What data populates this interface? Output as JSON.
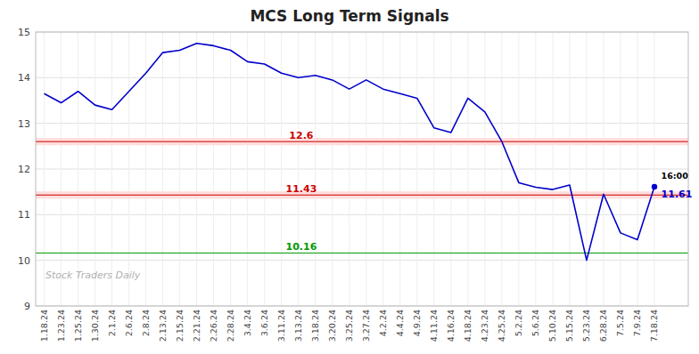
{
  "chart_data": {
    "type": "line",
    "title": "MCS Long Term Signals",
    "categories": [
      "1.18.24",
      "1.23.24",
      "1.25.24",
      "1.30.24",
      "2.1.24",
      "2.6.24",
      "2.8.24",
      "2.13.24",
      "2.15.24",
      "2.21.24",
      "2.26.24",
      "2.28.24",
      "3.4.24",
      "3.6.24",
      "3.11.24",
      "3.13.24",
      "3.18.24",
      "3.20.24",
      "3.25.24",
      "3.27.24",
      "4.2.24",
      "4.4.24",
      "4.9.24",
      "4.11.24",
      "4.16.24",
      "4.18.24",
      "4.23.24",
      "4.25.24",
      "5.2.24",
      "5.6.24",
      "5.10.24",
      "5.15.24",
      "5.23.24",
      "6.28.24",
      "7.5.24",
      "7.9.24",
      "7.18.24"
    ],
    "values": [
      13.65,
      13.45,
      13.7,
      13.4,
      13.3,
      13.7,
      14.1,
      14.55,
      14.6,
      14.75,
      14.7,
      14.6,
      14.35,
      14.3,
      14.1,
      14.0,
      14.05,
      13.95,
      13.75,
      13.95,
      13.75,
      13.65,
      13.55,
      12.9,
      12.8,
      13.55,
      13.25,
      12.6,
      11.7,
      11.6,
      11.55,
      11.65,
      10.0,
      11.45,
      10.6,
      10.45,
      11.61
    ],
    "color": "#0000cc",
    "hlines": [
      {
        "value": 12.6,
        "label": "12.6",
        "color": "#cc0000"
      },
      {
        "value": 11.43,
        "label": "11.43",
        "color": "#cc0000"
      },
      {
        "value": 10.16,
        "label": "10.16",
        "color": "#009900"
      }
    ],
    "bands": [
      {
        "y0": 12.52,
        "y1": 12.68,
        "color": "#ffdddd"
      },
      {
        "y0": 11.35,
        "y1": 11.51,
        "color": "#ffdddd"
      }
    ],
    "last_point_label": "16:00",
    "last_point_value_label": "11.61",
    "watermark": "Stock Traders Daily",
    "ylim": [
      9,
      15
    ],
    "yticks": [
      9,
      10,
      11,
      12,
      13,
      14,
      15
    ],
    "grid": true
  }
}
